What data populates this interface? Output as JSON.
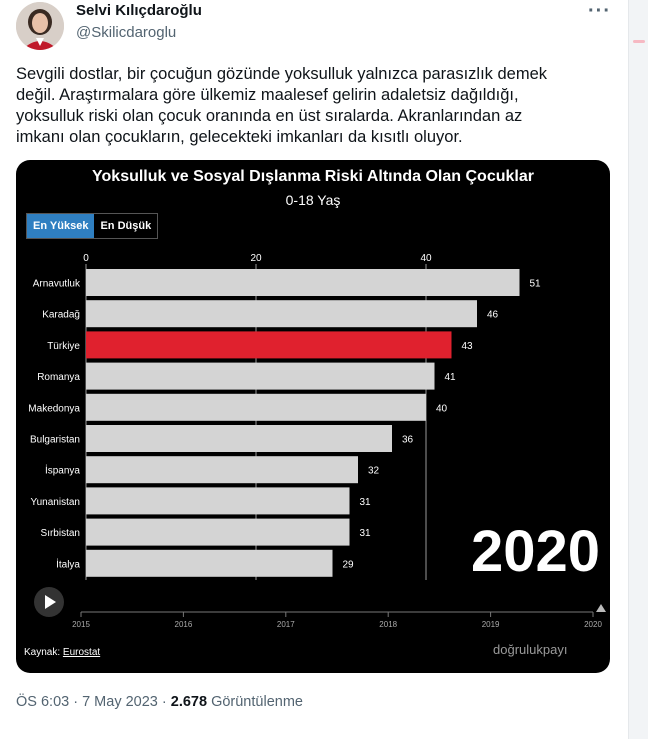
{
  "author": {
    "name": "Selvi Kılıçdaroğlu",
    "handle": "@Skilicdaroglu"
  },
  "tweet": {
    "lines": [
      "Sevgili dostlar, bir çocuğun gözünde yoksulluk yalnızca parasızlık demek",
      "değil. Araştırmalara göre ülkemiz maalesef gelirin adaletsiz dağıldığı,",
      "yoksulluk riski olan çocuk oranında en üst sıralarda. Akranlarından az",
      "imkanı olan çocukların, gelecekteki imkanları da kısıtlı oluyor."
    ]
  },
  "media": {
    "toggle": {
      "active": "En Yüksek",
      "inactive": "En Düşük"
    },
    "source_label": "Kaynak:",
    "source_link": "Eurostat",
    "logo": "doğrulukpayı"
  },
  "meta": {
    "time": "ÖS 6:03 · 7 May 2023 · ",
    "views": "2.678",
    "views_label": " Görüntülenme"
  },
  "colors": {
    "bar": "#d4d4d4",
    "highlight": "#e0212e",
    "background": "#000000",
    "toggle_active": "#2f7fc1"
  },
  "chart_data": {
    "type": "bar",
    "orientation": "horizontal",
    "title": "Yoksulluk ve Sosyal Dışlanma Riski Altında Olan Çocuklar",
    "subtitle": "0-18 Yaş",
    "categories": [
      "Arnavutluk",
      "Karadağ",
      "Türkiye",
      "Romanya",
      "Makedonya",
      "Bulgaristan",
      "İspanya",
      "Yunanistan",
      "Sırbistan",
      "İtalya"
    ],
    "values": [
      51,
      46,
      43,
      41,
      40,
      36,
      32,
      31,
      31,
      29
    ],
    "highlight": "Türkiye",
    "xlim": [
      0,
      60
    ],
    "x_ticks": [
      "0",
      "20",
      "40"
    ],
    "year_label": "2020",
    "timeline": {
      "ticks": [
        "2015",
        "2016",
        "2017",
        "2018",
        "2019",
        "2020"
      ],
      "current": "2020"
    }
  }
}
